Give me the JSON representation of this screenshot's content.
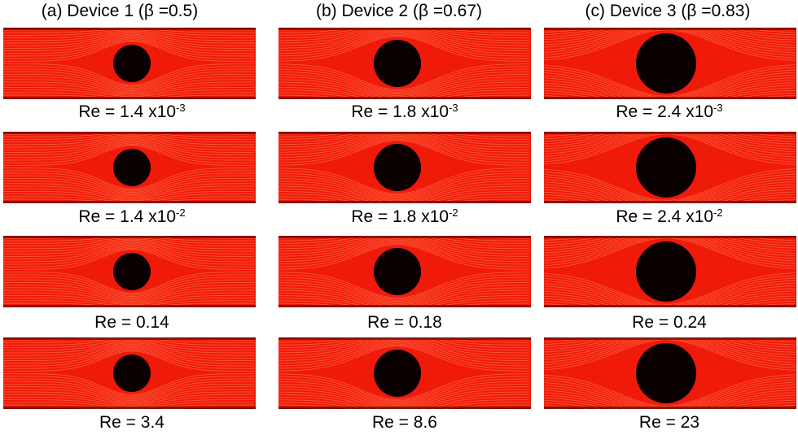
{
  "columns": [
    {
      "title": "(a)  Device 1 (β =0.5)",
      "captions": [
        {
          "base": "Re = 1.4 x10",
          "exp": "-3"
        },
        {
          "base": "Re = 1.4 x10",
          "exp": "-2"
        },
        {
          "base": "Re = 0.14",
          "exp": ""
        },
        {
          "base": "Re = 3.4",
          "exp": ""
        }
      ]
    },
    {
      "title": "(b)  Device 2 (β =0.67)",
      "captions": [
        {
          "base": "Re = 1.8 x10",
          "exp": "-3"
        },
        {
          "base": "Re = 1.8 x10",
          "exp": "-2"
        },
        {
          "base": "Re = 0.18",
          "exp": ""
        },
        {
          "base": "Re = 8.6",
          "exp": ""
        }
      ]
    },
    {
      "title": "(c)  Device 3 (β =0.83)",
      "captions": [
        {
          "base": "Re = 2.4 x10",
          "exp": "-3"
        },
        {
          "base": "Re = 2.4 x10",
          "exp": "-2"
        },
        {
          "base": "Re = 0.24",
          "exp": ""
        },
        {
          "base": "Re = 23",
          "exp": ""
        }
      ]
    }
  ],
  "colors": {
    "fluid": "#f01a0a",
    "streamline": "#ff6a45",
    "obstacle": "#0a0000",
    "background": "#ffffff"
  }
}
